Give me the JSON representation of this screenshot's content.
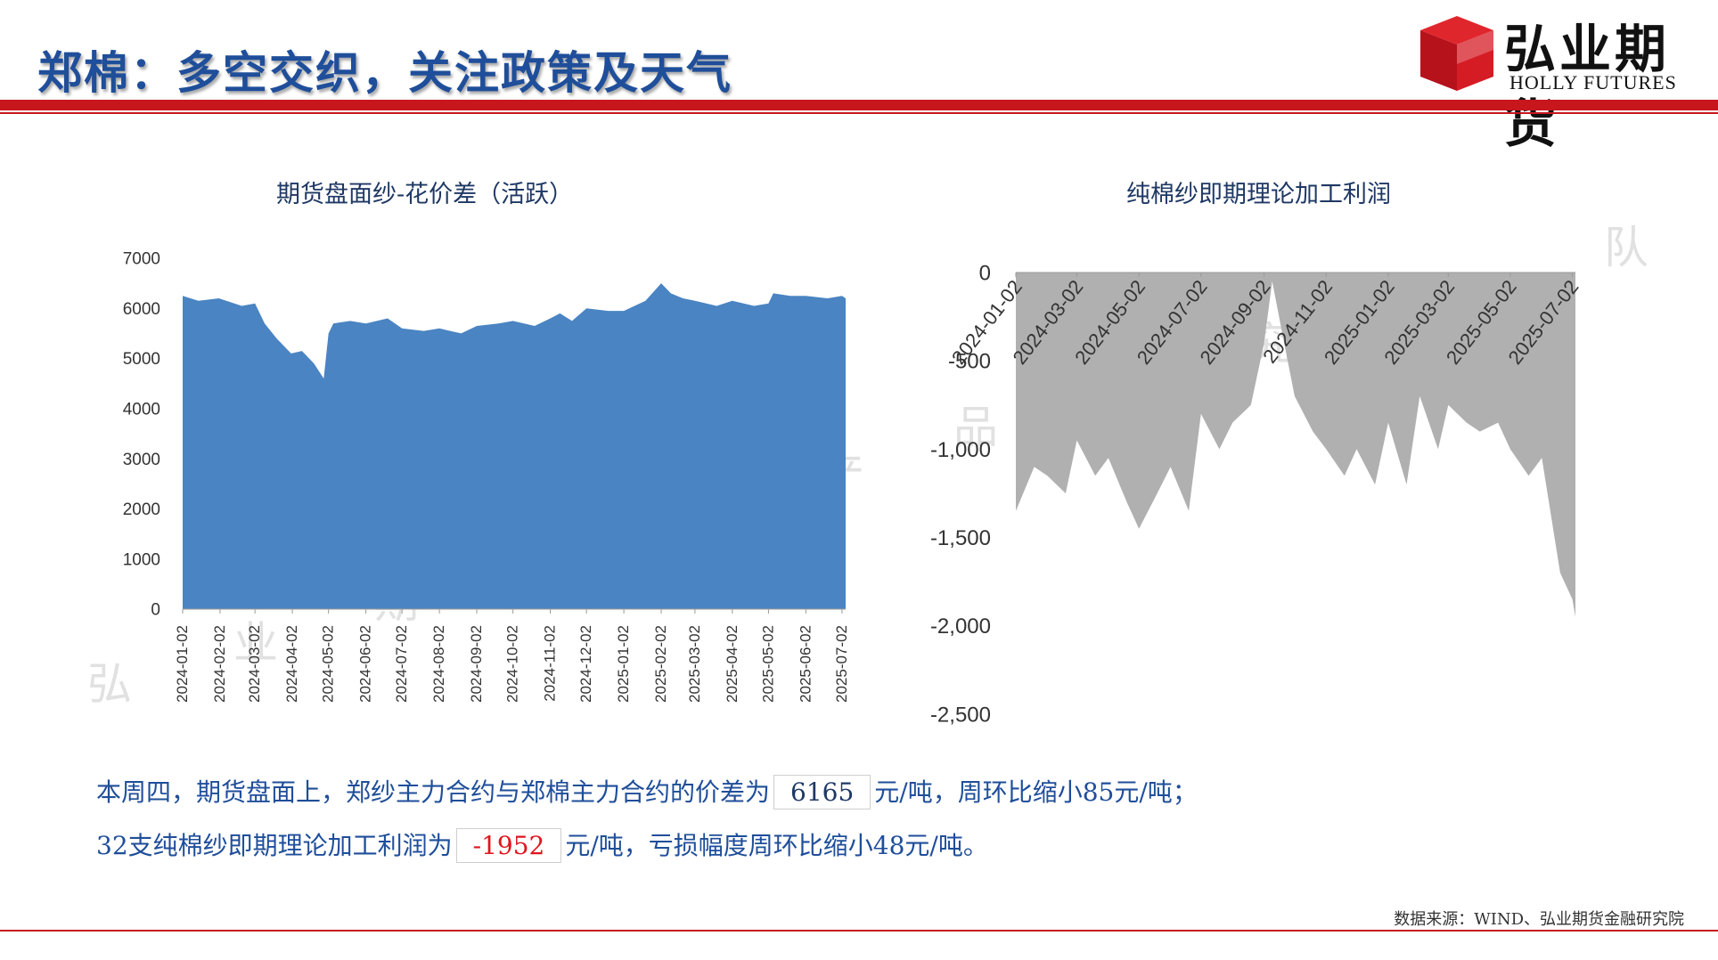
{
  "header": {
    "title": "郑棉：多空交织，关注政策及天气",
    "logo_cn": "弘业期货",
    "logo_en": "HOLLY FUTURES"
  },
  "watermark": [
    "弘",
    "业",
    "期",
    "货",
    "农",
    "产",
    "品",
    "研",
    "究",
    "团",
    "队"
  ],
  "colors": {
    "accent_red": "#c8161d",
    "title_blue": "#1f4e9a",
    "area_blue": "#4a84c2",
    "area_gray": "#b0b0b0"
  },
  "summary": {
    "line1_prefix": "本周四，期货盘面上，郑纱主力合约与郑棉主力合约的价差为",
    "line1_value": "6165",
    "line1_suffix": "元/吨，周环比缩小85元/吨；",
    "line2_prefix": "32支纯棉纱即期理论加工利润为",
    "line2_value": "-1952",
    "line2_suffix": "元/吨，亏损幅度周环比缩小48元/吨。"
  },
  "footer": {
    "source": "数据来源：WIND、弘业期货金融研究院"
  },
  "chart_data": [
    {
      "type": "area",
      "title": "期货盘面纱-花价差（活跃）",
      "ylim": [
        0,
        7000
      ],
      "y_ticks": [
        "0",
        "1000",
        "2000",
        "3000",
        "4000",
        "5000",
        "6000",
        "7000"
      ],
      "x_ticks": [
        "2024-01-02",
        "2024-02-02",
        "2024-03-02",
        "2024-04-02",
        "2024-05-02",
        "2024-06-02",
        "2024-07-02",
        "2024-08-02",
        "2024-09-02",
        "2024-10-02",
        "2024-11-02",
        "2024-12-02",
        "2025-01-02",
        "2025-02-02",
        "2025-03-02",
        "2025-04-02",
        "2025-05-02",
        "2025-06-02",
        "2025-07-02"
      ],
      "x": [
        "2024-01-02",
        "2024-01-15",
        "2024-02-01",
        "2024-02-20",
        "2024-03-02",
        "2024-03-10",
        "2024-03-20",
        "2024-04-01",
        "2024-04-10",
        "2024-04-20",
        "2024-04-28",
        "2024-05-02",
        "2024-05-06",
        "2024-05-20",
        "2024-06-02",
        "2024-06-20",
        "2024-07-02",
        "2024-07-20",
        "2024-08-02",
        "2024-08-20",
        "2024-09-02",
        "2024-09-20",
        "2024-10-02",
        "2024-10-20",
        "2024-11-02",
        "2024-11-10",
        "2024-11-20",
        "2024-12-02",
        "2024-12-20",
        "2025-01-02",
        "2025-01-20",
        "2025-02-02",
        "2025-02-10",
        "2025-02-20",
        "2025-03-02",
        "2025-03-20",
        "2025-04-02",
        "2025-04-20",
        "2025-05-02",
        "2025-05-06",
        "2025-05-20",
        "2025-06-02",
        "2025-06-20",
        "2025-07-02",
        "2025-07-05"
      ],
      "values": [
        6250,
        6150,
        6200,
        6050,
        6100,
        5700,
        5400,
        5100,
        5150,
        4900,
        4600,
        5500,
        5700,
        5750,
        5700,
        5800,
        5600,
        5550,
        5600,
        5500,
        5650,
        5700,
        5750,
        5650,
        5800,
        5900,
        5750,
        6000,
        5950,
        5950,
        6150,
        6500,
        6300,
        6200,
        6150,
        6050,
        6150,
        6050,
        6100,
        6300,
        6250,
        6250,
        6200,
        6250,
        6200
      ]
    },
    {
      "type": "area",
      "title": "纯棉纱即期理论加工利润",
      "ylim": [
        -2500,
        0
      ],
      "y_ticks": [
        "0",
        "-500",
        "-1,000",
        "-1,500",
        "-2,000",
        "-2,500"
      ],
      "x_ticks": [
        "2024-01-02",
        "2024-03-02",
        "2024-05-02",
        "2024-07-02",
        "2024-09-02",
        "2024-11-02",
        "2025-01-02",
        "2025-03-02",
        "2025-05-02",
        "2025-07-02"
      ],
      "x": [
        "2024-01-02",
        "2024-01-20",
        "2024-02-02",
        "2024-02-20",
        "2024-03-02",
        "2024-03-20",
        "2024-04-02",
        "2024-04-20",
        "2024-05-02",
        "2024-05-20",
        "2024-06-02",
        "2024-06-20",
        "2024-07-02",
        "2024-07-20",
        "2024-08-02",
        "2024-08-20",
        "2024-09-02",
        "2024-09-10",
        "2024-09-20",
        "2024-10-02",
        "2024-10-20",
        "2024-11-02",
        "2024-11-20",
        "2024-12-02",
        "2024-12-20",
        "2025-01-02",
        "2025-01-20",
        "2025-02-02",
        "2025-02-20",
        "2025-03-02",
        "2025-03-20",
        "2025-04-02",
        "2025-04-20",
        "2025-05-02",
        "2025-05-20",
        "2025-06-02",
        "2025-06-20",
        "2025-07-02",
        "2025-07-05"
      ],
      "values": [
        -1350,
        -1100,
        -1150,
        -1250,
        -950,
        -1150,
        -1050,
        -1300,
        -1450,
        -1250,
        -1100,
        -1350,
        -800,
        -1000,
        -850,
        -750,
        -400,
        -50,
        -350,
        -700,
        -900,
        -1000,
        -1150,
        -1000,
        -1200,
        -850,
        -1200,
        -700,
        -1000,
        -750,
        -850,
        -900,
        -850,
        -1000,
        -1150,
        -1050,
        -1700,
        -1850,
        -1950
      ]
    }
  ]
}
